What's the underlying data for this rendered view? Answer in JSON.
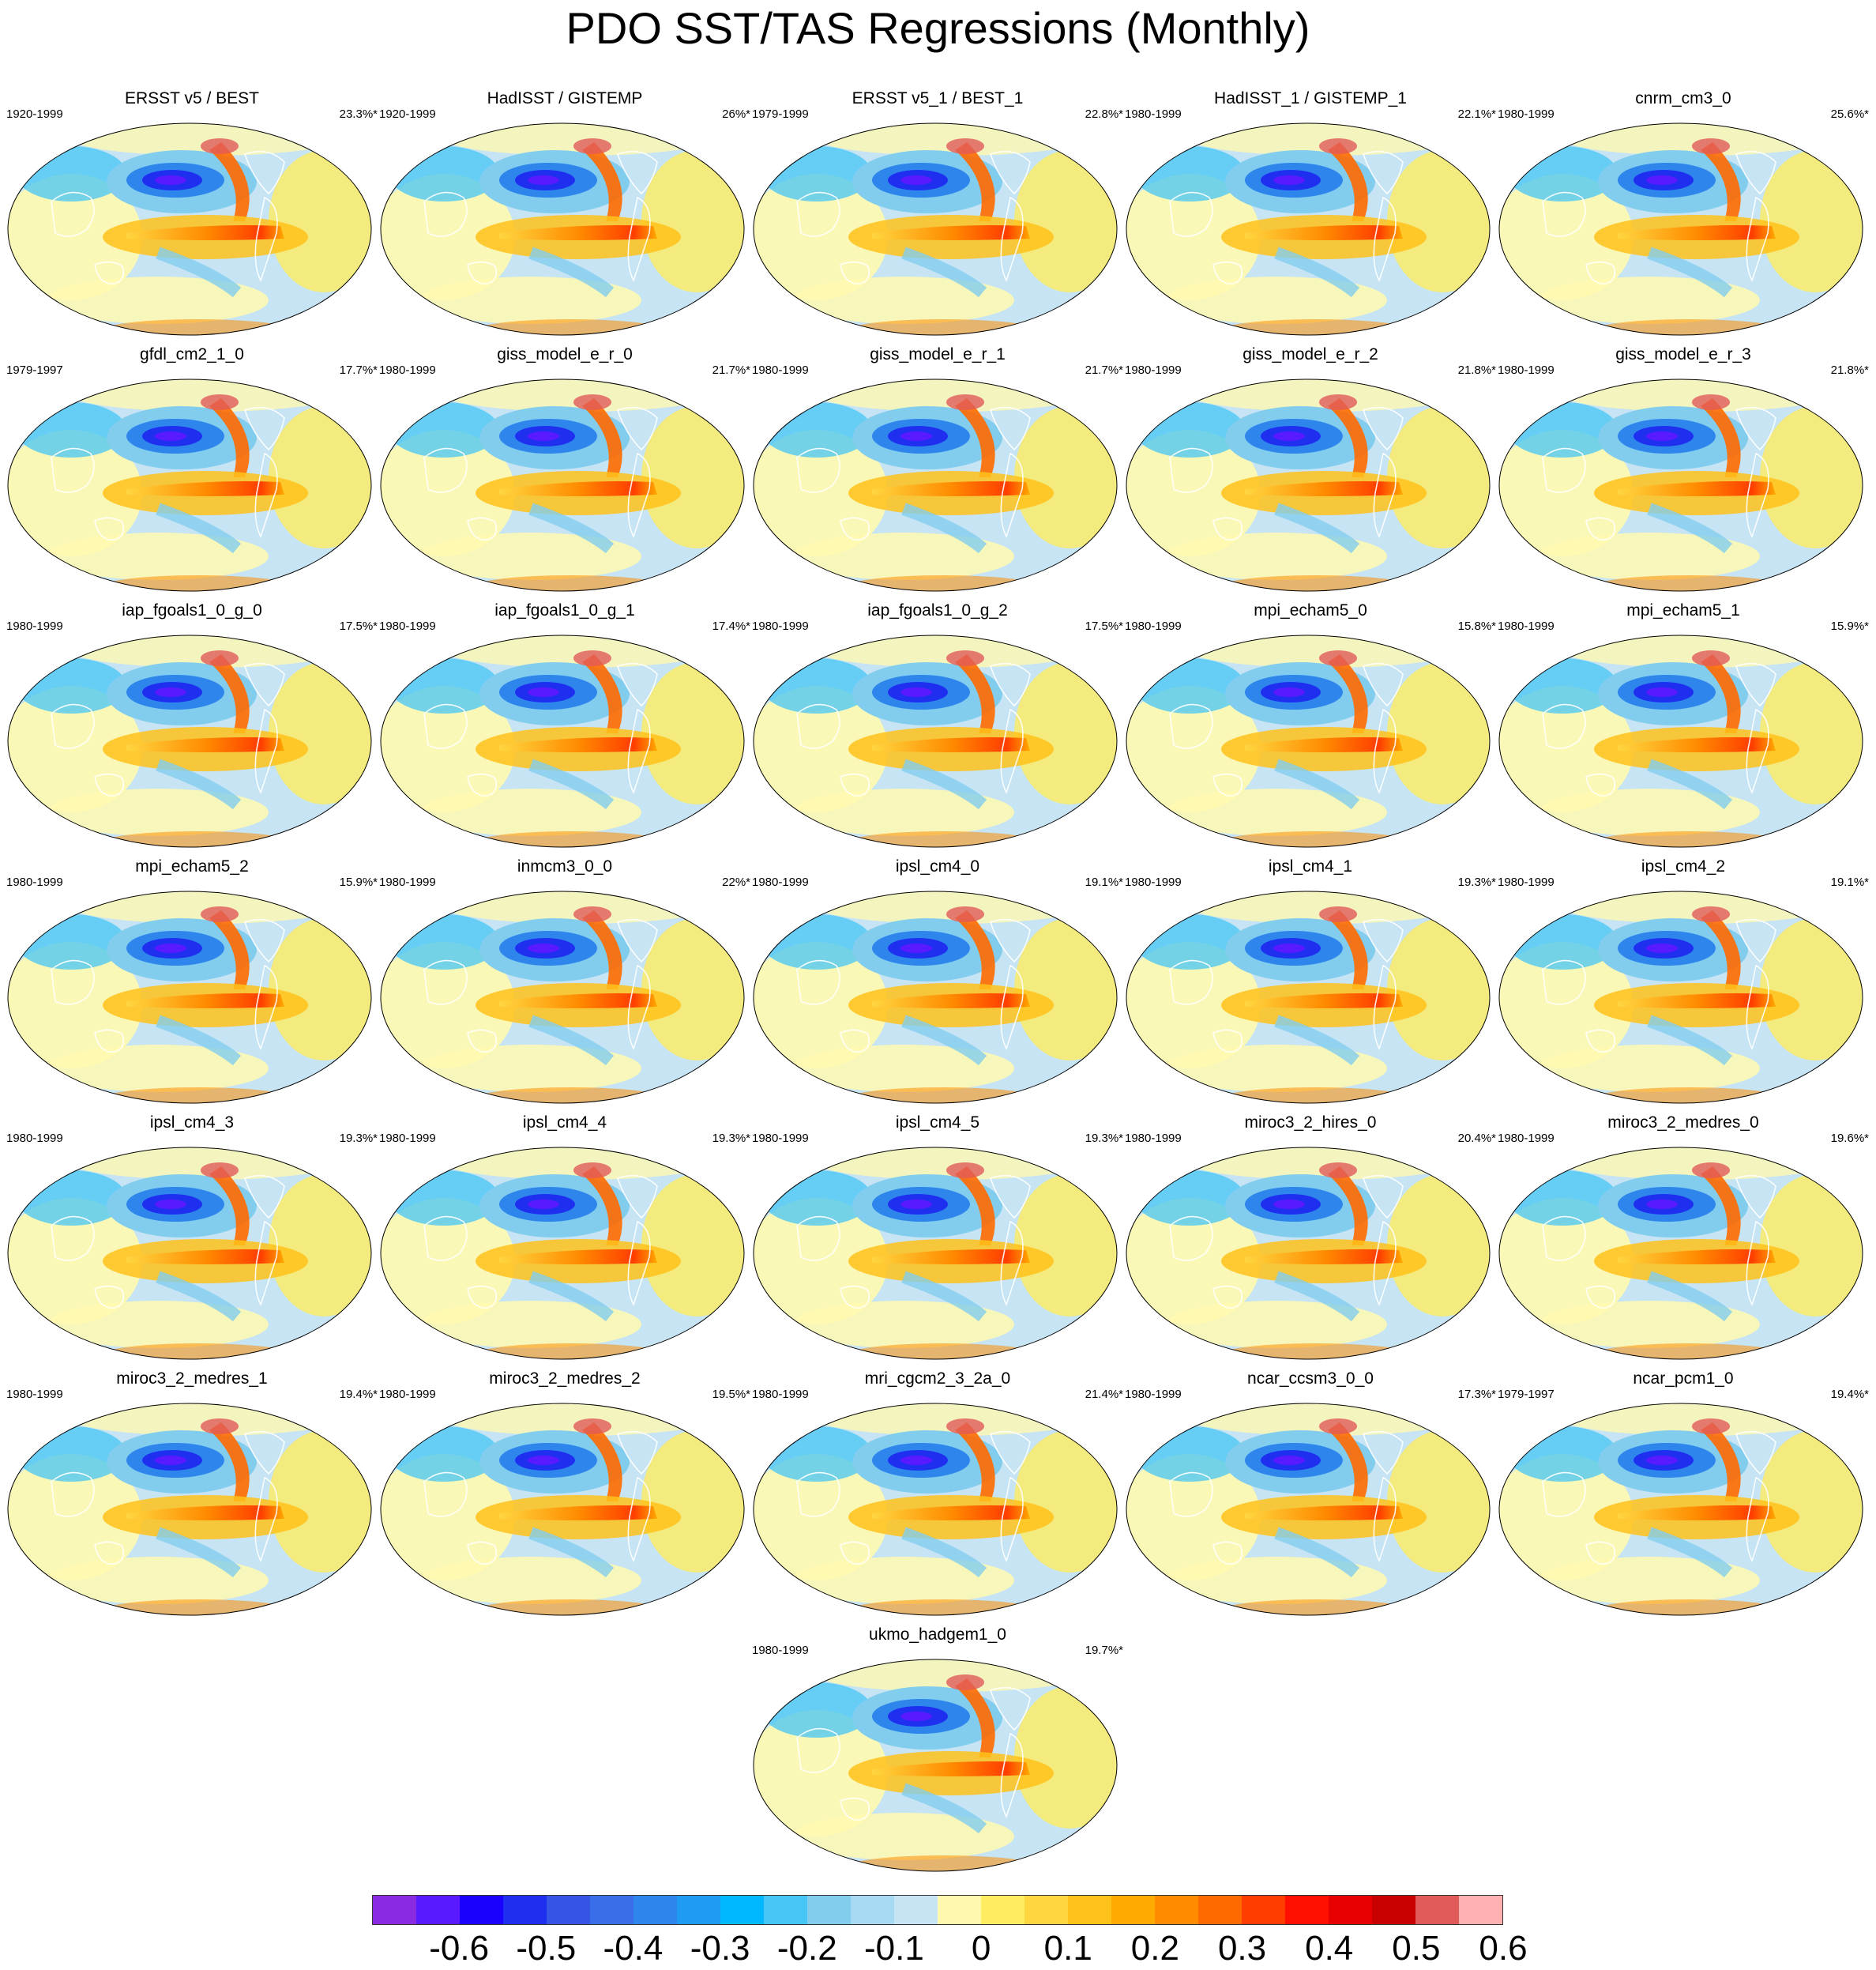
{
  "title": "PDO SST/TAS Regressions (Monthly)",
  "panels": [
    {
      "name": "ERSST v5 / BEST",
      "period": "1920-1999",
      "pct": "23.3%*"
    },
    {
      "name": "HadISST / GISTEMP",
      "period": "1920-1999",
      "pct": "26%*"
    },
    {
      "name": "ERSST v5_1 / BEST_1",
      "period": "1979-1999",
      "pct": "22.8%*"
    },
    {
      "name": "HadISST_1 / GISTEMP_1",
      "period": "1980-1999",
      "pct": "22.1%*"
    },
    {
      "name": "cnrm_cm3_0",
      "period": "1980-1999",
      "pct": "25.6%*"
    },
    {
      "name": "gfdl_cm2_1_0",
      "period": "1979-1997",
      "pct": "17.7%*"
    },
    {
      "name": "giss_model_e_r_0",
      "period": "1980-1999",
      "pct": "21.7%*"
    },
    {
      "name": "giss_model_e_r_1",
      "period": "1980-1999",
      "pct": "21.7%*"
    },
    {
      "name": "giss_model_e_r_2",
      "period": "1980-1999",
      "pct": "21.8%*"
    },
    {
      "name": "giss_model_e_r_3",
      "period": "1980-1999",
      "pct": "21.8%*"
    },
    {
      "name": "iap_fgoals1_0_g_0",
      "period": "1980-1999",
      "pct": "17.5%*"
    },
    {
      "name": "iap_fgoals1_0_g_1",
      "period": "1980-1999",
      "pct": "17.4%*"
    },
    {
      "name": "iap_fgoals1_0_g_2",
      "period": "1980-1999",
      "pct": "17.5%*"
    },
    {
      "name": "mpi_echam5_0",
      "period": "1980-1999",
      "pct": "15.8%*"
    },
    {
      "name": "mpi_echam5_1",
      "period": "1980-1999",
      "pct": "15.9%*"
    },
    {
      "name": "mpi_echam5_2",
      "period": "1980-1999",
      "pct": "15.9%*"
    },
    {
      "name": "inmcm3_0_0",
      "period": "1980-1999",
      "pct": "22%*"
    },
    {
      "name": "ipsl_cm4_0",
      "period": "1980-1999",
      "pct": "19.1%*"
    },
    {
      "name": "ipsl_cm4_1",
      "period": "1980-1999",
      "pct": "19.3%*"
    },
    {
      "name": "ipsl_cm4_2",
      "period": "1980-1999",
      "pct": "19.1%*"
    },
    {
      "name": "ipsl_cm4_3",
      "period": "1980-1999",
      "pct": "19.3%*"
    },
    {
      "name": "ipsl_cm4_4",
      "period": "1980-1999",
      "pct": "19.3%*"
    },
    {
      "name": "ipsl_cm4_5",
      "period": "1980-1999",
      "pct": "19.3%*"
    },
    {
      "name": "miroc3_2_hires_0",
      "period": "1980-1999",
      "pct": "20.4%*"
    },
    {
      "name": "miroc3_2_medres_0",
      "period": "1980-1999",
      "pct": "19.6%*"
    },
    {
      "name": "miroc3_2_medres_1",
      "period": "1980-1999",
      "pct": "19.4%*"
    },
    {
      "name": "miroc3_2_medres_2",
      "period": "1980-1999",
      "pct": "19.5%*"
    },
    {
      "name": "mri_cgcm2_3_2a_0",
      "period": "1980-1999",
      "pct": "21.4%*"
    },
    {
      "name": "ncar_ccsm3_0_0",
      "period": "1980-1999",
      "pct": "17.3%*"
    },
    {
      "name": "ncar_pcm1_0",
      "period": "1979-1997",
      "pct": "19.4%*"
    },
    {
      "name": "ukmo_hadgem1_0",
      "period": "1980-1999",
      "pct": "19.7%*"
    }
  ],
  "colorbar": {
    "colors": [
      "#8a2be2",
      "#5a1aff",
      "#1a00ff",
      "#1e2ff0",
      "#3654e6",
      "#3a6ee8",
      "#2e86ec",
      "#1f9bf2",
      "#00b8ff",
      "#46c6f5",
      "#82cdee",
      "#a8d9f2",
      "#c6e4f4",
      "#fff9b0",
      "#ffec60",
      "#ffd640",
      "#ffc21a",
      "#ffaa00",
      "#ff8c00",
      "#ff6a00",
      "#ff3d00",
      "#ff0f00",
      "#e60000",
      "#c80000",
      "#e05a5a",
      "#ffb0b0"
    ],
    "labels": [
      "-0.6",
      "-0.5",
      "-0.4",
      "-0.3",
      "-0.2",
      "-0.1",
      "0",
      "0.1",
      "0.2",
      "0.3",
      "0.4",
      "0.5",
      "0.6"
    ],
    "label_boundaries": [
      2,
      4,
      6,
      8,
      10,
      12,
      14,
      16,
      18,
      20,
      22,
      24,
      26
    ]
  }
}
